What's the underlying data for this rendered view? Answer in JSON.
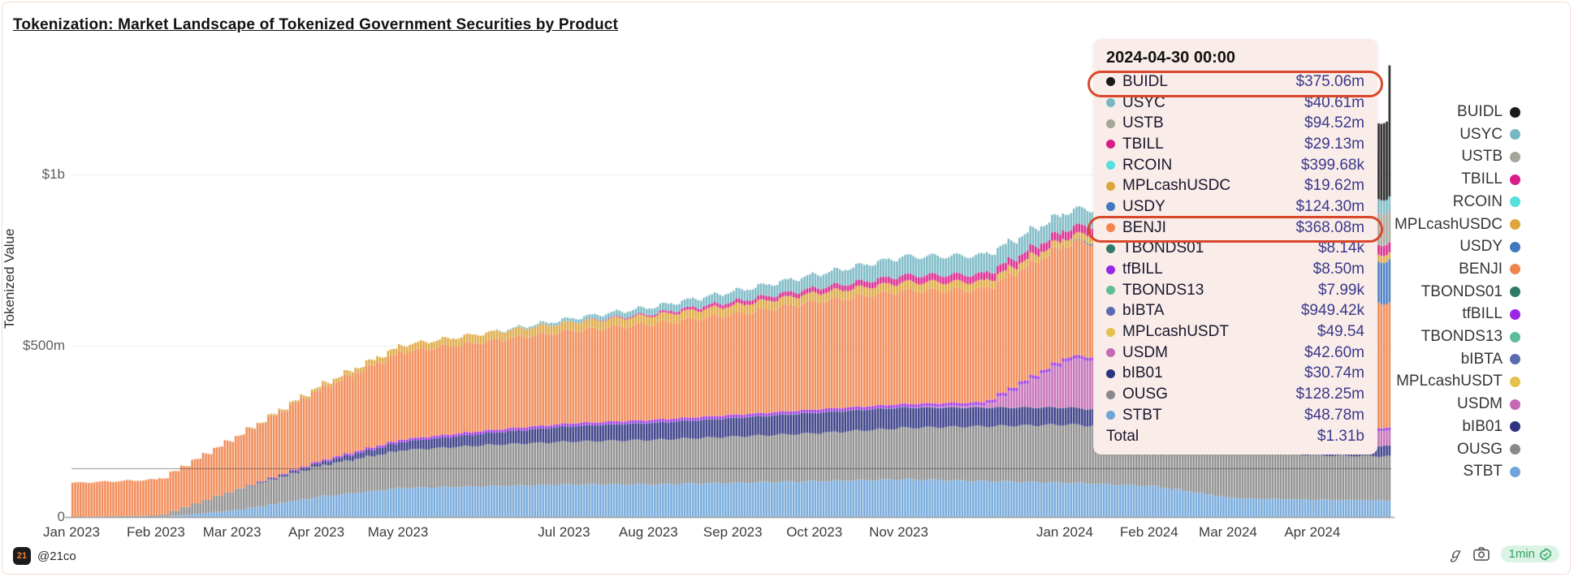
{
  "title": "Tokenization: Market Landscape of Tokenized Government Securities by Product",
  "y_axis": {
    "label": "Tokenized Value",
    "ticks": [
      {
        "label": "$1b",
        "value_m": 1000
      },
      {
        "label": "$500m",
        "value_m": 500
      },
      {
        "label": "0",
        "value_m": 0
      }
    ]
  },
  "x_axis": {
    "labels": [
      {
        "label": "Jan 2023",
        "day": 0
      },
      {
        "label": "Feb 2023",
        "day": 31
      },
      {
        "label": "Mar 2023",
        "day": 59
      },
      {
        "label": "Apr 2023",
        "day": 90
      },
      {
        "label": "May 2023",
        "day": 120
      },
      {
        "label": "Jul 2023",
        "day": 181
      },
      {
        "label": "Aug 2023",
        "day": 212
      },
      {
        "label": "Sep 2023",
        "day": 243
      },
      {
        "label": "Oct 2023",
        "day": 273
      },
      {
        "label": "Nov 2023",
        "day": 304
      },
      {
        "label": "Jan 2024",
        "day": 365
      },
      {
        "label": "Feb 2024",
        "day": 396
      },
      {
        "label": "Mar 2024",
        "day": 425
      },
      {
        "label": "Apr 2024",
        "day": 456
      }
    ]
  },
  "tooltip": {
    "header": "2024-04-30 00:00",
    "rows": [
      {
        "name": "BUIDL",
        "value": "$375.06m",
        "circled": true
      },
      {
        "name": "USYC",
        "value": "$40.61m",
        "circled": false
      },
      {
        "name": "USTB",
        "value": "$94.52m",
        "circled": false
      },
      {
        "name": "TBILL",
        "value": "$29.13m",
        "circled": false
      },
      {
        "name": "RCOIN",
        "value": "$399.68k",
        "circled": false
      },
      {
        "name": "MPLcashUSDC",
        "value": "$19.62m",
        "circled": false
      },
      {
        "name": "USDY",
        "value": "$124.30m",
        "circled": false
      },
      {
        "name": "BENJI",
        "value": "$368.08m",
        "circled": true
      },
      {
        "name": "TBONDS01",
        "value": "$8.14k",
        "circled": false
      },
      {
        "name": "tfBILL",
        "value": "$8.50m",
        "circled": false
      },
      {
        "name": "TBONDS13",
        "value": "$7.99k",
        "circled": false
      },
      {
        "name": "bIBTA",
        "value": "$949.42k",
        "circled": false
      },
      {
        "name": "MPLcashUSDT",
        "value": "$49.54",
        "circled": false
      },
      {
        "name": "USDM",
        "value": "$42.60m",
        "circled": false
      },
      {
        "name": "bIB01",
        "value": "$30.74m",
        "circled": false
      },
      {
        "name": "OUSG",
        "value": "$128.25m",
        "circled": false
      },
      {
        "name": "STBT",
        "value": "$48.78m",
        "circled": false
      }
    ],
    "total": {
      "label": "Total",
      "value": "$1.31b"
    },
    "crosshair_value_m": 142
  },
  "footer": {
    "logo_text": "21",
    "handle": "@21co",
    "badge_label": "1min"
  },
  "colors": {
    "annotation_red": "#d9472b",
    "tooltip_bg": "#faece8",
    "badge_bg": "#dbf3e5",
    "badge_text": "#2fa360",
    "grid": "#ececec",
    "baseline": "#9b9b9b",
    "crosshair": "rgba(60,60,60,0.55)"
  },
  "chart_data": {
    "type": "bar",
    "variant": "stacked-daily-bars",
    "title": "Tokenization: Market Landscape of Tokenized Government Securities by Product",
    "ylabel": "Tokenized Value",
    "unit_m": "USD millions",
    "ylim_m": [
      0,
      1320
    ],
    "y_gridlines_m": [
      500,
      1000
    ],
    "x_start": "2023-01-01",
    "x_end": "2024-04-30",
    "hovered_point": {
      "date": "2024-04-30 00:00",
      "total": "$1.31b"
    },
    "anchor_dates": [
      "2023-01-01",
      "2023-02-01",
      "2023-03-01",
      "2023-04-01",
      "2023-05-01",
      "2023-06-01",
      "2023-07-01",
      "2023-08-01",
      "2023-09-01",
      "2023-10-01",
      "2023-11-01",
      "2023-12-01",
      "2024-01-01",
      "2024-02-01",
      "2024-03-01",
      "2024-04-01",
      "2024-04-24",
      "2024-04-30"
    ],
    "anchor_days": [
      0,
      31,
      59,
      90,
      120,
      151,
      181,
      212,
      243,
      273,
      304,
      334,
      365,
      396,
      425,
      456,
      478,
      484
    ],
    "series_note": "bottom-to-top stacking order; values_m are estimated anchors in $ millions",
    "series": [
      {
        "name": "STBT",
        "color": "#6fa5d9",
        "values_m": [
          0,
          0,
          20,
          60,
          85,
          90,
          95,
          95,
          100,
          105,
          110,
          105,
          100,
          90,
          55,
          50,
          49,
          48.78
        ]
      },
      {
        "name": "OUSG",
        "color": "#8a8a8a",
        "values_m": [
          0,
          5,
          60,
          90,
          110,
          120,
          125,
          130,
          135,
          140,
          150,
          160,
          170,
          165,
          140,
          130,
          128.5,
          128.25
        ]
      },
      {
        "name": "bIB01",
        "color": "#2f3480",
        "values_m": [
          0,
          0,
          0,
          10,
          25,
          35,
          45,
          50,
          55,
          60,
          60,
          55,
          50,
          45,
          35,
          32,
          31,
          30.74
        ]
      },
      {
        "name": "USDM",
        "color": "#c469b4",
        "values_m": [
          0,
          0,
          0,
          0,
          0,
          0,
          0,
          0,
          0,
          0,
          0,
          5,
          140,
          150,
          90,
          50,
          43,
          42.6
        ]
      },
      {
        "name": "MPLcashUSDT",
        "color": "#e5c04c",
        "values_m": [
          0,
          0,
          0,
          0,
          0,
          0,
          0,
          0,
          0,
          0,
          0,
          0,
          0,
          0,
          0,
          0,
          0,
          0.0001
        ]
      },
      {
        "name": "bIBTA",
        "color": "#5a6cb0",
        "values_m": [
          0,
          0,
          0,
          0,
          0,
          0,
          0.5,
          0.9,
          0.95,
          0.95,
          0.95,
          0.95,
          0.95,
          0.95,
          0.95,
          0.95,
          0.95,
          0.95
        ]
      },
      {
        "name": "TBONDS13",
        "color": "#5fbd9c",
        "values_m": [
          0,
          0,
          0,
          0,
          0,
          0,
          0,
          0,
          0,
          0,
          0,
          0,
          0,
          0,
          0,
          0,
          0,
          0.008
        ]
      },
      {
        "name": "tfBILL",
        "color": "#9927e3",
        "values_m": [
          0,
          0,
          0,
          5,
          7,
          8,
          8,
          8,
          8,
          9,
          9,
          9,
          10,
          9,
          9,
          8.5,
          8.5,
          8.5
        ]
      },
      {
        "name": "TBONDS01",
        "color": "#2f7a6a",
        "values_m": [
          0,
          0,
          0,
          0,
          0,
          0,
          0,
          0,
          0,
          0,
          0,
          0,
          0,
          0,
          0,
          0,
          0,
          0.008
        ]
      },
      {
        "name": "BENJI",
        "color": "#f0854e",
        "values_m": [
          100,
          105,
          155,
          210,
          255,
          260,
          270,
          280,
          295,
          315,
          330,
          330,
          330,
          340,
          350,
          360,
          366,
          368.08
        ]
      },
      {
        "name": "USDY",
        "color": "#4178be",
        "values_m": [
          0,
          0,
          0,
          0,
          0,
          0,
          0,
          0,
          0,
          0,
          0,
          0,
          0,
          20,
          60,
          100,
          120,
          124.3
        ]
      },
      {
        "name": "MPLcashUSDC",
        "color": "#dda63d",
        "values_m": [
          0,
          0,
          0,
          10,
          20,
          25,
          25,
          25,
          25,
          25,
          25,
          22,
          20,
          20,
          20,
          19.62,
          19.62,
          19.62
        ]
      },
      {
        "name": "RCOIN",
        "color": "#55e0dd",
        "values_m": [
          0,
          0,
          0,
          0,
          0,
          0,
          0,
          0,
          0,
          0,
          0,
          0,
          0,
          0,
          0,
          0.4,
          0.4,
          0.4
        ]
      },
      {
        "name": "TBILL",
        "color": "#d91c87",
        "values_m": [
          0,
          0,
          0,
          0,
          0,
          0,
          0,
          5,
          12,
          15,
          20,
          22,
          25,
          26,
          28,
          29,
          29,
          29.13
        ]
      },
      {
        "name": "USTB",
        "color": "#a5a599",
        "values_m": [
          0,
          0,
          0,
          0,
          0,
          0,
          0,
          0,
          0,
          0,
          0,
          0,
          0,
          0,
          30,
          70,
          90,
          94.52
        ]
      },
      {
        "name": "USYC",
        "color": "#76b7c3",
        "values_m": [
          0,
          0,
          0,
          0,
          0,
          0,
          10,
          20,
          30,
          40,
          55,
          55,
          50,
          45,
          42,
          41,
          40.7,
          40.61
        ]
      },
      {
        "name": "BUIDL",
        "color": "#1b1b1b",
        "values_m": [
          0,
          0,
          0,
          0,
          0,
          0,
          0,
          0,
          0,
          0,
          0,
          0,
          0,
          0,
          0,
          40,
          150,
          375.06
        ]
      }
    ],
    "legend_order_top_down": [
      "BUIDL",
      "USYC",
      "USTB",
      "TBILL",
      "RCOIN",
      "MPLcashUSDC",
      "USDY",
      "BENJI",
      "TBONDS01",
      "tfBILL",
      "TBONDS13",
      "bIBTA",
      "MPLcashUSDT",
      "USDM",
      "bIB01",
      "OUSG",
      "STBT"
    ]
  }
}
